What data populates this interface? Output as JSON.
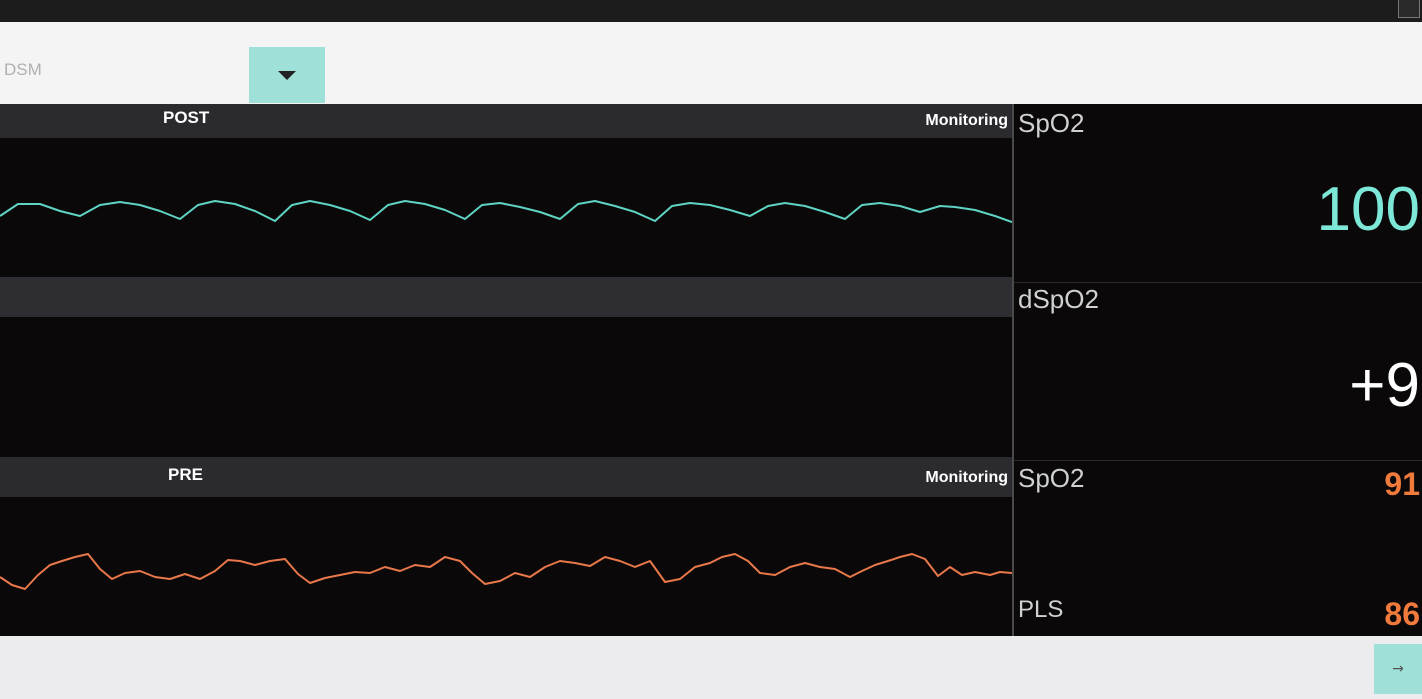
{
  "selector": {
    "value": "DSM",
    "icon": "caret-down-icon"
  },
  "channels": {
    "post": {
      "title": "POST",
      "status": "Monitoring",
      "color": "#5fd3c4"
    },
    "pre": {
      "title": "PRE",
      "status": "Monitoring",
      "color": "#e8784a"
    }
  },
  "parameters": {
    "spo2_post": {
      "label": "SpO2",
      "value": "100",
      "color": "#7de8d8"
    },
    "dspo2": {
      "label": "dSpO2",
      "value": "+9",
      "color": "#ffffff"
    },
    "spo2_pre": {
      "label": "SpO2",
      "value": "91",
      "color": "#f07a3c"
    },
    "pls": {
      "label": "PLS",
      "value": "86",
      "color": "#f07a3c"
    }
  },
  "footer": {
    "next_icon": "arrow-right-icon",
    "next_label": "→"
  }
}
